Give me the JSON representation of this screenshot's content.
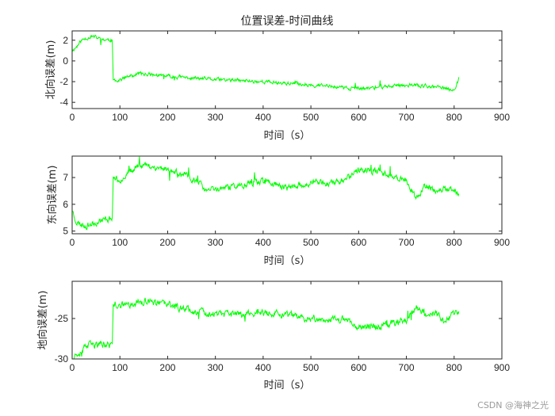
{
  "title": "位置误差-时间曲线",
  "watermark": "CSDN @海神之光",
  "series_color": "#00ff00",
  "chart_data": [
    {
      "type": "line",
      "title": "位置误差-时间曲线",
      "xlabel": "时间（s）",
      "ylabel": "北向误差(m)",
      "xlim": [
        0,
        900
      ],
      "ylim": [
        -4.6,
        2.9
      ],
      "xticks": [
        0,
        100,
        200,
        300,
        400,
        500,
        600,
        700,
        800,
        900
      ],
      "yticks": [
        -4,
        -2,
        0,
        2
      ],
      "anchors": [
        [
          0,
          1.0
        ],
        [
          10,
          1.4
        ],
        [
          20,
          2.0
        ],
        [
          40,
          2.4
        ],
        [
          60,
          2.1
        ],
        [
          84,
          2.0
        ],
        [
          86,
          -1.9
        ],
        [
          100,
          -1.8
        ],
        [
          140,
          -1.2
        ],
        [
          200,
          -1.5
        ],
        [
          300,
          -1.8
        ],
        [
          400,
          -2.0
        ],
        [
          500,
          -2.3
        ],
        [
          600,
          -2.7
        ],
        [
          700,
          -2.3
        ],
        [
          760,
          -2.5
        ],
        [
          800,
          -2.8
        ],
        [
          810,
          -1.7
        ]
      ],
      "noise": 0.18,
      "seed": 11
    },
    {
      "type": "line",
      "title": "",
      "xlabel": "时间（s）",
      "ylabel": "东向误差(m)",
      "xlim": [
        0,
        900
      ],
      "ylim": [
        4.9,
        7.8
      ],
      "xticks": [
        0,
        100,
        200,
        300,
        400,
        500,
        600,
        700,
        800,
        900
      ],
      "yticks": [
        5,
        6,
        7
      ],
      "anchors": [
        [
          0,
          5.8
        ],
        [
          10,
          5.3
        ],
        [
          30,
          5.2
        ],
        [
          60,
          5.4
        ],
        [
          84,
          5.5
        ],
        [
          86,
          7.0
        ],
        [
          100,
          6.9
        ],
        [
          140,
          7.5
        ],
        [
          200,
          7.3
        ],
        [
          260,
          6.9
        ],
        [
          280,
          6.5
        ],
        [
          350,
          6.7
        ],
        [
          400,
          6.9
        ],
        [
          450,
          6.6
        ],
        [
          500,
          6.8
        ],
        [
          560,
          6.8
        ],
        [
          600,
          7.3
        ],
        [
          650,
          7.2
        ],
        [
          700,
          6.9
        ],
        [
          720,
          6.2
        ],
        [
          740,
          6.7
        ],
        [
          760,
          6.5
        ],
        [
          800,
          6.6
        ],
        [
          810,
          6.3
        ]
      ],
      "noise": 0.12,
      "seed": 23
    },
    {
      "type": "line",
      "title": "",
      "xlabel": "时间（s）",
      "ylabel": "地向误差(m)",
      "xlim": [
        0,
        900
      ],
      "ylim": [
        -30,
        -20.4
      ],
      "xticks": [
        0,
        100,
        200,
        300,
        400,
        500,
        600,
        700,
        800,
        900
      ],
      "yticks": [
        -30,
        -25
      ],
      "anchors": [
        [
          0,
          -29.8
        ],
        [
          10,
          -29.3
        ],
        [
          30,
          -28.4
        ],
        [
          60,
          -28.2
        ],
        [
          84,
          -28.3
        ],
        [
          86,
          -23.2
        ],
        [
          100,
          -23.4
        ],
        [
          150,
          -22.9
        ],
        [
          200,
          -23.3
        ],
        [
          300,
          -24.6
        ],
        [
          400,
          -24.3
        ],
        [
          500,
          -25.0
        ],
        [
          580,
          -25.2
        ],
        [
          600,
          -26.0
        ],
        [
          650,
          -25.9
        ],
        [
          700,
          -25.1
        ],
        [
          720,
          -23.5
        ],
        [
          740,
          -24.5
        ],
        [
          760,
          -24.3
        ],
        [
          780,
          -25.2
        ],
        [
          810,
          -24.0
        ]
      ],
      "noise": 0.45,
      "seed": 37
    }
  ]
}
